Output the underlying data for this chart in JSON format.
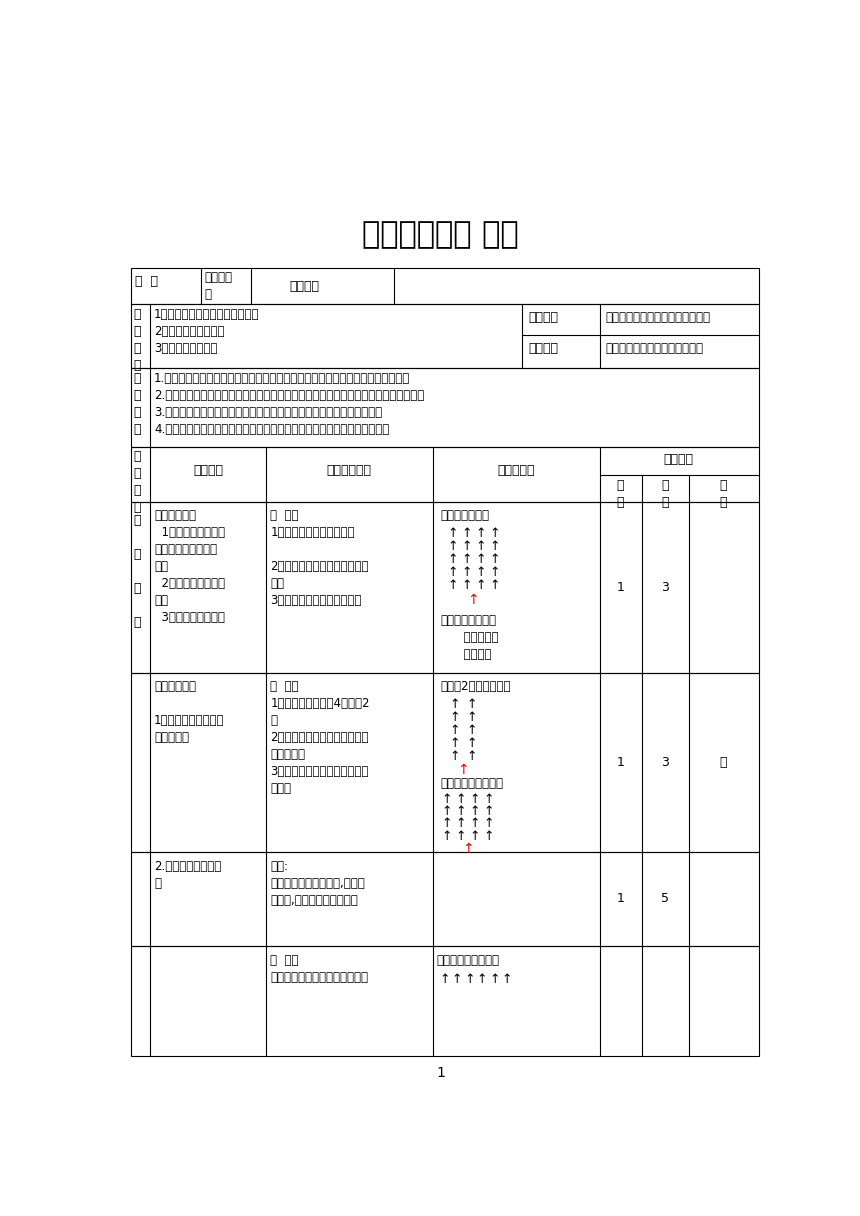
{
  "title": "《立定跳远》 教案",
  "bg_color": "#ffffff",
  "row1_grade_label": "年  级",
  "row1_grade_value": "一年级三\n班",
  "row1_time_label": "上课时间",
  "row2_left": "1、跳短绳：复习连续并脚跳短绳\n2、游戏：跳跃接力赛\n3、游戏：象步虎掌",
  "row2_key_label": "教学重点",
  "row2_key_value": "前脚掌蹬地起跳与轻巧落地的方法",
  "row2_diff_label": "教学难点",
  "row2_diff_value": "双起双落、如何较好地落地缓冲",
  "row3_label": "教\n学\n目\n标",
  "row3_content": "1.运动参与目标：通过各种跳跃练习促进学生参与到运动中来，增强学习积极性。\n2.运动技能目标：进一步掌握双脚跳跃的动作和方法，提高学生的灵巧性和跳跃能力。\n3.身体健康目标：发展学生的协调性、下肢力量以及对身体的掌控能力。\n4.社会适应目标：通过游戏练习，培养学生团结协作以及勇于拼搚的能力。",
  "hdr_process": "教\n学\n过\n程",
  "hdr_content": "教学内容",
  "hdr_method": "教与学的过程",
  "hdr_org": "组织与要求",
  "hdr_load": "运动负荷",
  "hdr_times": "次\n数",
  "hdr_duration": "时\n间",
  "hdr_intensity": "强\n度",
  "s1_side": "激\n\n趣\n\n热\n\n身",
  "s1_content": "一、课堂常规\n  1、集合整队、检查\n服装和人数、师生问\n好。\n  2、宣布本节课的内\n容。\n  3、队列队形练习。",
  "s1_method": "教  法：\n1、督促整队，检查服装。\n\n2、讲解学习目标，提出学练要\n求。\n3、集体进行队列队形练习。",
  "s1_org_top": "组织：四路纵队",
  "s1_req": "要求：整队快静齐\n      注意力集中\n      精神饱满",
  "s1_times": "1",
  "s1_duration": "3",
  "s1_intensity": "",
  "s2_content": "二、准备活动\n\n1、成两路纵队绕操场\n跑步两圈。",
  "s2_method": "教  法：\n1、由体育委员带领4路变为2\n路\n2、在体育委员带领下进行绕操\n场跑步活动\n3、在教师口哨口令下，进行口\n号练习",
  "s2_org1": "练习：2路纵队绕操场",
  "s2_org2": "练习：四列横队散开",
  "s2_times": "1",
  "s2_duration": "3",
  "s2_intensity": "小",
  "s3_content": "2.韵律热身操：兔子\n舞",
  "s3_method": "教法:\n跟音乐进行兔子舞练习,达到热\n身效果,同时增加跳跃练习。",
  "s3_times": "1",
  "s3_duration": "5",
  "s3_intensity": "",
  "s4_method": "教  法：\n（共练习三组，每一组之间以坐",
  "s4_org": "组织：体操队形散开"
}
